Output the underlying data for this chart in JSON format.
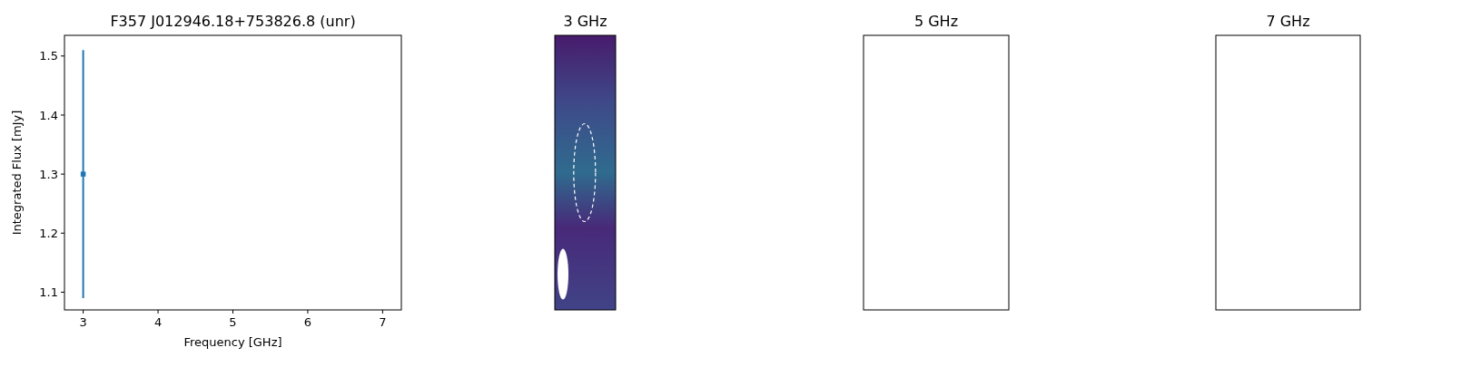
{
  "chart_data": [
    {
      "type": "scatter",
      "title": "F357 J012946.18+753826.8 (unr)",
      "xlabel": "Frequency [GHz]",
      "ylabel": "Integrated Flux [mJy]",
      "x": [
        3
      ],
      "values": [
        1.3
      ],
      "errors": [
        0.21
      ],
      "color": "#1f77b4",
      "marker": "square",
      "xlim": [
        2.75,
        7.25
      ],
      "xticks": [
        3,
        4,
        5,
        6,
        7
      ],
      "ylim": [
        1.07,
        1.535
      ],
      "yticks": [
        1.1,
        1.2,
        1.3,
        1.4,
        1.5
      ]
    },
    {
      "type": "other",
      "title": "3 GHz"
    },
    {
      "type": "other",
      "title": "5 GHz"
    },
    {
      "type": "other",
      "title": "7 GHz"
    }
  ]
}
